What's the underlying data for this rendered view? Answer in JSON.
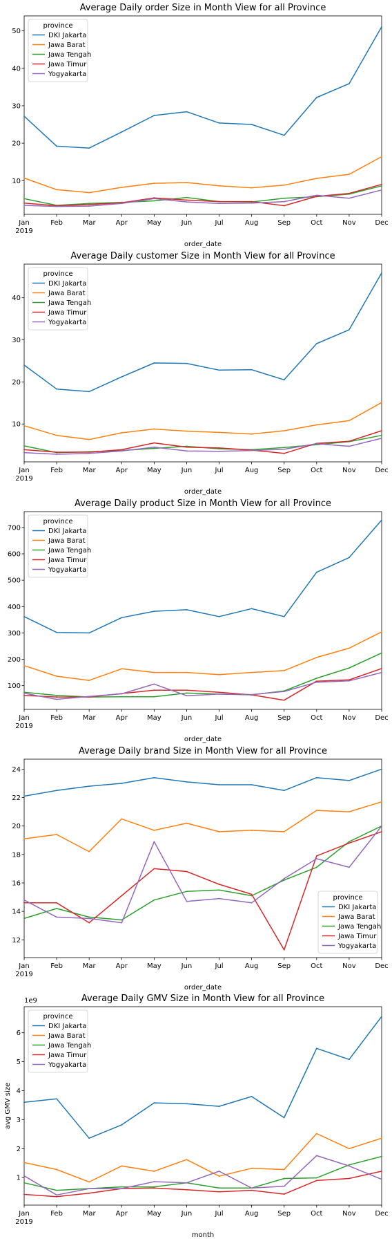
{
  "colors": {
    "DKI Jakarta": "#1f77b4",
    "Jawa Barat": "#ff7f0e",
    "Jawa Tengah": "#2ca02c",
    "Jawa Timur": "#d62728",
    "Yogyakarta": "#9467bd"
  },
  "chart_data": [
    {
      "type": "line",
      "title": "Average Daily order Size in Month View for all Province",
      "xlabel": "order_date",
      "ylabel": "",
      "x": [
        "Jan",
        "Feb",
        "Mar",
        "Apr",
        "May",
        "Jun",
        "Jul",
        "Aug",
        "Sep",
        "Oct",
        "Nov",
        "Dec"
      ],
      "x_first_sublabel": "2019",
      "ylim": [
        1,
        54
      ],
      "yticks": [
        10,
        20,
        30,
        40,
        50
      ],
      "legend_title": "province",
      "legend_position": "top-left",
      "series": [
        {
          "name": "DKI Jakarta",
          "values": [
            27.2,
            19.2,
            18.7,
            23.0,
            27.4,
            28.4,
            25.4,
            25.0,
            22.1,
            32.2,
            35.9,
            51.1
          ]
        },
        {
          "name": "Jawa Barat",
          "values": [
            10.7,
            7.6,
            6.8,
            8.2,
            9.3,
            9.5,
            8.6,
            8.1,
            8.8,
            10.6,
            11.7,
            16.4
          ]
        },
        {
          "name": "Jawa Tengah",
          "values": [
            5.2,
            3.4,
            3.9,
            4.2,
            4.6,
            5.5,
            4.4,
            4.3,
            5.3,
            5.7,
            6.4,
            8.6
          ]
        },
        {
          "name": "Jawa Timur",
          "values": [
            4.0,
            3.3,
            3.6,
            4.1,
            5.4,
            4.8,
            4.4,
            4.4,
            3.3,
            5.8,
            6.6,
            9.0
          ]
        },
        {
          "name": "Yogyakarta",
          "values": [
            3.4,
            3.1,
            3.2,
            3.9,
            5.2,
            4.3,
            3.9,
            4.0,
            4.4,
            6.1,
            5.3,
            7.5
          ]
        }
      ]
    },
    {
      "type": "line",
      "title": "Average Daily customer Size in Month View for all Province",
      "xlabel": "order_date",
      "ylabel": "",
      "x": [
        "Jan",
        "Feb",
        "Mar",
        "Apr",
        "May",
        "Jun",
        "Jul",
        "Aug",
        "Sep",
        "Oct",
        "Nov",
        "Dec"
      ],
      "x_first_sublabel": "2019",
      "ylim": [
        1,
        48
      ],
      "yticks": [
        10,
        20,
        30,
        40
      ],
      "legend_title": "province",
      "legend_position": "top-left",
      "series": [
        {
          "name": "DKI Jakarta",
          "values": [
            24.0,
            18.3,
            17.7,
            21.2,
            24.5,
            24.4,
            22.8,
            22.9,
            20.5,
            29.1,
            32.4,
            45.9
          ]
        },
        {
          "name": "Jawa Barat",
          "values": [
            9.6,
            7.3,
            6.3,
            7.9,
            8.8,
            8.3,
            8.0,
            7.6,
            8.4,
            9.8,
            10.8,
            15.1
          ]
        },
        {
          "name": "Jawa Tengah",
          "values": [
            4.8,
            3.2,
            3.4,
            3.7,
            4.2,
            4.7,
            4.1,
            3.9,
            4.4,
            5.1,
            5.8,
            7.3
          ]
        },
        {
          "name": "Jawa Timur",
          "values": [
            3.9,
            3.3,
            3.3,
            3.9,
            5.5,
            4.5,
            4.3,
            3.8,
            3.0,
            5.4,
            5.9,
            8.4
          ]
        },
        {
          "name": "Yogyakarta",
          "values": [
            3.2,
            2.8,
            3.0,
            3.6,
            4.5,
            3.6,
            3.5,
            3.7,
            4.0,
            5.3,
            4.7,
            6.6
          ]
        }
      ]
    },
    {
      "type": "line",
      "title": "Average Daily product Size in Month View for all Province",
      "xlabel": "order_date",
      "ylabel": "",
      "x": [
        "Jan",
        "Feb",
        "Mar",
        "Apr",
        "May",
        "Jun",
        "Jul",
        "Aug",
        "Sep",
        "Oct",
        "Nov",
        "Dec"
      ],
      "x_first_sublabel": "2019",
      "ylim": [
        10,
        760
      ],
      "yticks": [
        100,
        200,
        300,
        400,
        500,
        600,
        700
      ],
      "legend_title": "province",
      "legend_position": "top-left",
      "series": [
        {
          "name": "DKI Jakarta",
          "values": [
            362,
            302,
            300,
            358,
            382,
            388,
            362,
            392,
            362,
            530,
            586,
            728
          ]
        },
        {
          "name": "Jawa Barat",
          "values": [
            176,
            136,
            120,
            164,
            150,
            150,
            142,
            150,
            157,
            207,
            242,
            304
          ]
        },
        {
          "name": "Jawa Tengah",
          "values": [
            75,
            63,
            57,
            58,
            58,
            72,
            68,
            65,
            80,
            128,
            167,
            224
          ]
        },
        {
          "name": "Jawa Timur",
          "values": [
            63,
            57,
            57,
            70,
            83,
            83,
            75,
            65,
            45,
            117,
            122,
            165
          ]
        },
        {
          "name": "Yogyakarta",
          "values": [
            71,
            48,
            59,
            69,
            106,
            62,
            68,
            66,
            78,
            113,
            118,
            150
          ]
        }
      ]
    },
    {
      "type": "line",
      "title": "Average Daily brand Size in Month View for all Province",
      "xlabel": "order_date",
      "ylabel": "",
      "x": [
        "Jan",
        "Feb",
        "Mar",
        "Apr",
        "May",
        "Jun",
        "Jul",
        "Aug",
        "Sep",
        "Oct",
        "Nov",
        "Dec"
      ],
      "x_first_sublabel": "2019",
      "ylim": [
        10.75,
        24.7
      ],
      "yticks": [
        12,
        14,
        16,
        18,
        20,
        22,
        24
      ],
      "legend_title": "province",
      "legend_position": "bottom-right",
      "series": [
        {
          "name": "DKI Jakarta",
          "values": [
            22.1,
            22.5,
            22.8,
            23.0,
            23.4,
            23.1,
            22.9,
            22.9,
            22.5,
            23.4,
            23.2,
            24.0
          ]
        },
        {
          "name": "Jawa Barat",
          "values": [
            19.1,
            19.4,
            18.2,
            20.5,
            19.7,
            20.2,
            19.6,
            19.7,
            19.6,
            21.1,
            21.0,
            21.7
          ]
        },
        {
          "name": "Jawa Tengah",
          "values": [
            13.5,
            14.2,
            13.6,
            13.4,
            14.8,
            15.4,
            15.5,
            15.1,
            16.2,
            17.1,
            18.9,
            20.0
          ]
        },
        {
          "name": "Jawa Timur",
          "values": [
            14.6,
            14.6,
            13.2,
            15.1,
            17.0,
            16.8,
            15.9,
            15.2,
            11.3,
            17.9,
            18.8,
            19.6
          ]
        },
        {
          "name": "Yogyakarta",
          "values": [
            14.8,
            13.6,
            13.5,
            13.2,
            18.9,
            14.7,
            14.9,
            14.6,
            16.3,
            17.7,
            17.1,
            20.0
          ]
        }
      ]
    },
    {
      "type": "line",
      "title": "Average Daily GMV Size in Month View for all Province",
      "xlabel": "month",
      "ylabel": "avg GMV size",
      "y_offset_label": "1e9",
      "x": [
        "Jan",
        "Feb",
        "Mar",
        "Apr",
        "May",
        "Jun",
        "Jul",
        "Aug",
        "Sep",
        "Oct",
        "Nov",
        "Dec"
      ],
      "x_first_sublabel": "2019",
      "ylim": [
        0.05,
        6.9
      ],
      "yticks": [
        1,
        2,
        3,
        4,
        5,
        6
      ],
      "legend_title": "province",
      "legend_position": "top-left",
      "series": [
        {
          "name": "DKI Jakarta",
          "values": [
            3.6,
            3.72,
            2.36,
            2.82,
            3.58,
            3.55,
            3.46,
            3.8,
            3.07,
            5.46,
            5.08,
            6.56
          ]
        },
        {
          "name": "Jawa Barat",
          "values": [
            1.52,
            1.28,
            0.85,
            1.4,
            1.22,
            1.62,
            1.05,
            1.32,
            1.28,
            2.52,
            2.0,
            2.36
          ]
        },
        {
          "name": "Jawa Tengah",
          "values": [
            0.82,
            0.56,
            0.62,
            0.68,
            0.68,
            0.82,
            0.64,
            0.64,
            0.97,
            0.99,
            1.44,
            1.73
          ]
        },
        {
          "name": "Jawa Timur",
          "values": [
            0.42,
            0.34,
            0.46,
            0.62,
            0.64,
            0.58,
            0.51,
            0.56,
            0.43,
            0.9,
            0.97,
            1.22
          ]
        },
        {
          "name": "Yogyakarta",
          "values": [
            1.06,
            0.4,
            0.62,
            0.62,
            0.86,
            0.82,
            1.22,
            0.64,
            0.7,
            1.76,
            1.4,
            0.94
          ]
        }
      ]
    }
  ]
}
